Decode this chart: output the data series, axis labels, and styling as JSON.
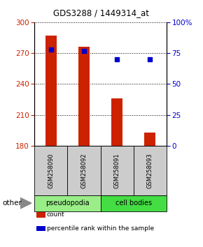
{
  "title": "GDS3288 / 1449314_at",
  "samples": [
    "GSM258090",
    "GSM258092",
    "GSM258091",
    "GSM258093"
  ],
  "counts": [
    287,
    276,
    226,
    193
  ],
  "percentiles": [
    78,
    77,
    70,
    70
  ],
  "ymin": 180,
  "ymax": 300,
  "yticks": [
    180,
    210,
    240,
    270,
    300
  ],
  "y2min": 0,
  "y2max": 100,
  "y2ticks": [
    0,
    25,
    50,
    75,
    100
  ],
  "bar_color": "#cc2200",
  "dot_color": "#0000cc",
  "groups": [
    {
      "label": "pseudopodia",
      "color": "#99ee88",
      "samples": [
        0,
        1
      ]
    },
    {
      "label": "cell bodies",
      "color": "#44dd44",
      "samples": [
        2,
        3
      ]
    }
  ],
  "bar_width": 0.35,
  "sample_box_color": "#cccccc",
  "other_label": "other",
  "legend": [
    {
      "label": "count",
      "color": "#cc2200"
    },
    {
      "label": "percentile rank within the sample",
      "color": "#0000cc"
    }
  ]
}
